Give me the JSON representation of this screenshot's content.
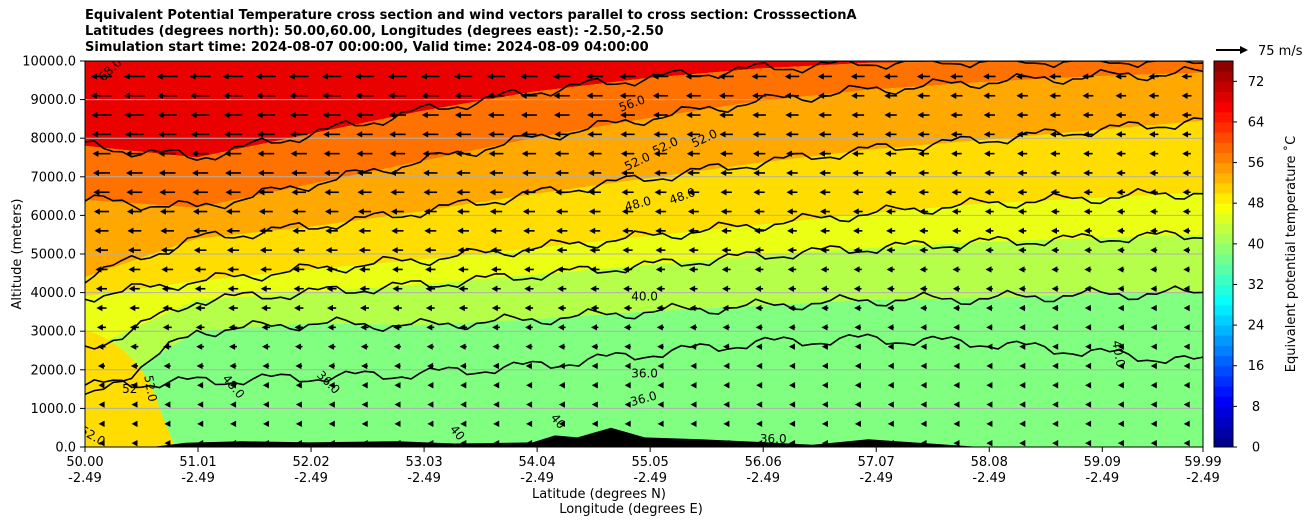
{
  "chart_data": {
    "type": "contour",
    "title_lines": [
      "Equivalent Potential Temperature cross section and wind vectors parallel to cross section: CrosssectionA",
      "Latitudes (degrees north): 50.00,60.00, Longitudes (degrees east): -2.50,-2.50",
      "Simulation start time: 2024-08-07 00:00:00, Valid time: 2024-08-09 04:00:00"
    ],
    "xlabel_lines": [
      "Latitude (degrees N)",
      "Longitude (degrees E)"
    ],
    "ylabel": "Altitude (meters)",
    "x_ticks": [
      {
        "lat": "50.00",
        "lon": "-2.49"
      },
      {
        "lat": "51.01",
        "lon": "-2.49"
      },
      {
        "lat": "52.02",
        "lon": "-2.49"
      },
      {
        "lat": "53.03",
        "lon": "-2.49"
      },
      {
        "lat": "54.04",
        "lon": "-2.49"
      },
      {
        "lat": "55.05",
        "lon": "-2.49"
      },
      {
        "lat": "56.06",
        "lon": "-2.49"
      },
      {
        "lat": "57.07",
        "lon": "-2.49"
      },
      {
        "lat": "58.08",
        "lon": "-2.49"
      },
      {
        "lat": "59.09",
        "lon": "-2.49"
      },
      {
        "lat": "59.99",
        "lon": "-2.49"
      }
    ],
    "xlim": [
      50.0,
      59.99
    ],
    "y_ticks": [
      "0.0",
      "1000.0",
      "2000.0",
      "3000.0",
      "4000.0",
      "5000.0",
      "6000.0",
      "7000.0",
      "8000.0",
      "9000.0",
      "10000.0"
    ],
    "ylim": [
      0,
      10000
    ],
    "grid": "horizontal",
    "colorbar": {
      "label": "Equivalent potential temperature ˚C",
      "ticks": [
        "0",
        "8",
        "16",
        "24",
        "32",
        "40",
        "48",
        "56",
        "64",
        "72"
      ],
      "range": [
        0,
        76
      ],
      "colormap": "jet"
    },
    "quiver_key": {
      "label": "75 m/s"
    },
    "contour_lines": [
      {
        "value": 36,
        "y": [
          1600,
          1700,
          1800,
          1900,
          2100,
          2400,
          2700,
          2800,
          2700,
          2450,
          2200
        ]
      },
      {
        "value": 40,
        "y": [
          1200,
          3000,
          3200,
          3150,
          3300,
          3500,
          3650,
          3800,
          3850,
          3950,
          4000
        ]
      },
      {
        "value": 44,
        "y": [
          2500,
          3800,
          4000,
          4200,
          4450,
          4700,
          4950,
          5150,
          5300,
          5400,
          5500
        ]
      },
      {
        "value": 48,
        "y": [
          3900,
          4300,
          4600,
          4850,
          5150,
          5450,
          5750,
          6050,
          6300,
          6450,
          6600
        ]
      },
      {
        "value": 52,
        "y": [
          4400,
          5400,
          5700,
          6100,
          6550,
          6950,
          7350,
          7700,
          7950,
          8200,
          8450
        ]
      },
      {
        "value": 56,
        "y": [
          6400,
          6200,
          6800,
          7400,
          8000,
          8500,
          8950,
          9250,
          9450,
          9600,
          9700
        ]
      },
      {
        "value": 60,
        "y": [
          7800,
          7500,
          8100,
          8700,
          9200,
          9550,
          9800,
          9950,
          10000,
          10000,
          10000
        ]
      }
    ],
    "contour_labels": [
      "68.0",
      "56.0",
      "52.0",
      "52.0",
      "52.0",
      "48.0",
      "48.0",
      "40.0",
      "36.0",
      "36.0",
      "36.0",
      "48.0",
      "36.0",
      "52",
      "52.0",
      "40.0",
      "40",
      "40",
      "52.0"
    ],
    "terrain": [
      {
        "lat": 50.0,
        "alt": 0
      },
      {
        "lat": 50.6,
        "alt": 0
      },
      {
        "lat": 50.9,
        "alt": 110
      },
      {
        "lat": 51.4,
        "alt": 150
      },
      {
        "lat": 52.0,
        "alt": 120
      },
      {
        "lat": 52.8,
        "alt": 150
      },
      {
        "lat": 53.3,
        "alt": 90
      },
      {
        "lat": 54.0,
        "alt": 120
      },
      {
        "lat": 54.2,
        "alt": 300
      },
      {
        "lat": 54.4,
        "alt": 250
      },
      {
        "lat": 54.7,
        "alt": 500
      },
      {
        "lat": 55.0,
        "alt": 250
      },
      {
        "lat": 55.5,
        "alt": 200
      },
      {
        "lat": 56.1,
        "alt": 120
      },
      {
        "lat": 56.5,
        "alt": 60
      },
      {
        "lat": 57.0,
        "alt": 200
      },
      {
        "lat": 57.6,
        "alt": 80
      },
      {
        "lat": 58.0,
        "alt": 0
      }
    ]
  }
}
